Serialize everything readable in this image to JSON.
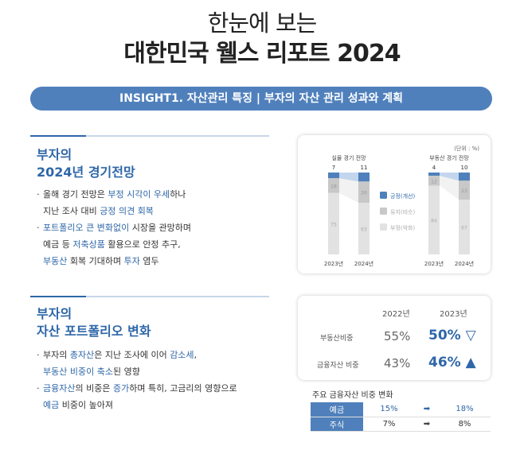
{
  "header": {
    "subtitle": "한눈에 보는",
    "title": "대한민국 웰스 리포트 2024"
  },
  "banner": {
    "text": "INSIGHT1. 자산관리 특징 | 부자의 자산 관리 성과와 계획"
  },
  "section1": {
    "title_line1": "부자의",
    "title_line2": "2024년 경기전망",
    "bullet1": {
      "t1": "올해 경기 전망은 ",
      "h1": "부정 시각이 우세",
      "t2": "하나",
      "t3": "지난 조사 대비 ",
      "h2": "긍정 의견 회복"
    },
    "bullet2": {
      "h1": "포트폴리오 큰 변화없이",
      "t1": " 시장을 관망하며",
      "t2": "예금 등 ",
      "h2": "저축상품",
      "t3": " 활용으로 안정 추구,",
      "h3": "부동산",
      "t4": " 회복 기대하며 ",
      "h4": "투자",
      "t5": " 염두"
    }
  },
  "section2": {
    "title_line1": "부자의",
    "title_line2": "자산 포트폴리오 변화",
    "bullet1": {
      "t1": "부자의 ",
      "h1": "총자산",
      "t2": "은 지난 조사에 이어 ",
      "h2": "감소세",
      "t3": ",",
      "h3": "부동산 비중이 축소",
      "t4": "된 영향"
    },
    "bullet2": {
      "h1": "금융자산",
      "t1": "의 비중은 ",
      "h2": "증가",
      "t2": "하며 특히, 고금리의 영향으로",
      "h3": "예금",
      "t3": " 비중이 높아져"
    }
  },
  "chart_data": [
    {
      "type": "bar",
      "subtype": "stacked-100",
      "unit": "(단위 : %)",
      "panels": [
        {
          "title": "실물 경기 전망",
          "categories": [
            "2023년",
            "2024년"
          ],
          "series": [
            {
              "name": "긍정(개선)",
              "values": [
                7,
                11
              ]
            },
            {
              "name": "유지(비슷)",
              "values": [
                18,
                26
              ]
            },
            {
              "name": "부정(악화)",
              "values": [
                75,
                63
              ]
            }
          ]
        },
        {
          "title": "부동산 경기 전망",
          "categories": [
            "2023년",
            "2024년"
          ],
          "series": [
            {
              "name": "긍정(개선)",
              "values": [
                4,
                10
              ]
            },
            {
              "name": "유지(비슷)",
              "values": [
                12,
                23
              ]
            },
            {
              "name": "부정(악화)",
              "values": [
                84,
                67
              ]
            }
          ]
        }
      ],
      "colors": {
        "positive": "#4f80bc",
        "neutral": "#c8c8c8",
        "negative": "#e2e2e2",
        "connector": "#b9cfea"
      },
      "legend": "center"
    },
    {
      "type": "table",
      "columns": [
        "2022년",
        "2023년"
      ],
      "rows": [
        {
          "label": "부동산비중",
          "v2022": "55%",
          "v2023": "50%",
          "trend": "▽"
        },
        {
          "label": "금융자산 비중",
          "v2022": "43%",
          "v2023": "46%",
          "trend": "▲"
        }
      ]
    },
    {
      "type": "table",
      "title": "주요 금융자산 비중 변화",
      "rows": [
        {
          "label": "예금",
          "from": "15%",
          "arrow": "➡",
          "to": "18%"
        },
        {
          "label": "주식",
          "from": "7%",
          "arrow": "➡",
          "to": "8%"
        }
      ]
    }
  ]
}
